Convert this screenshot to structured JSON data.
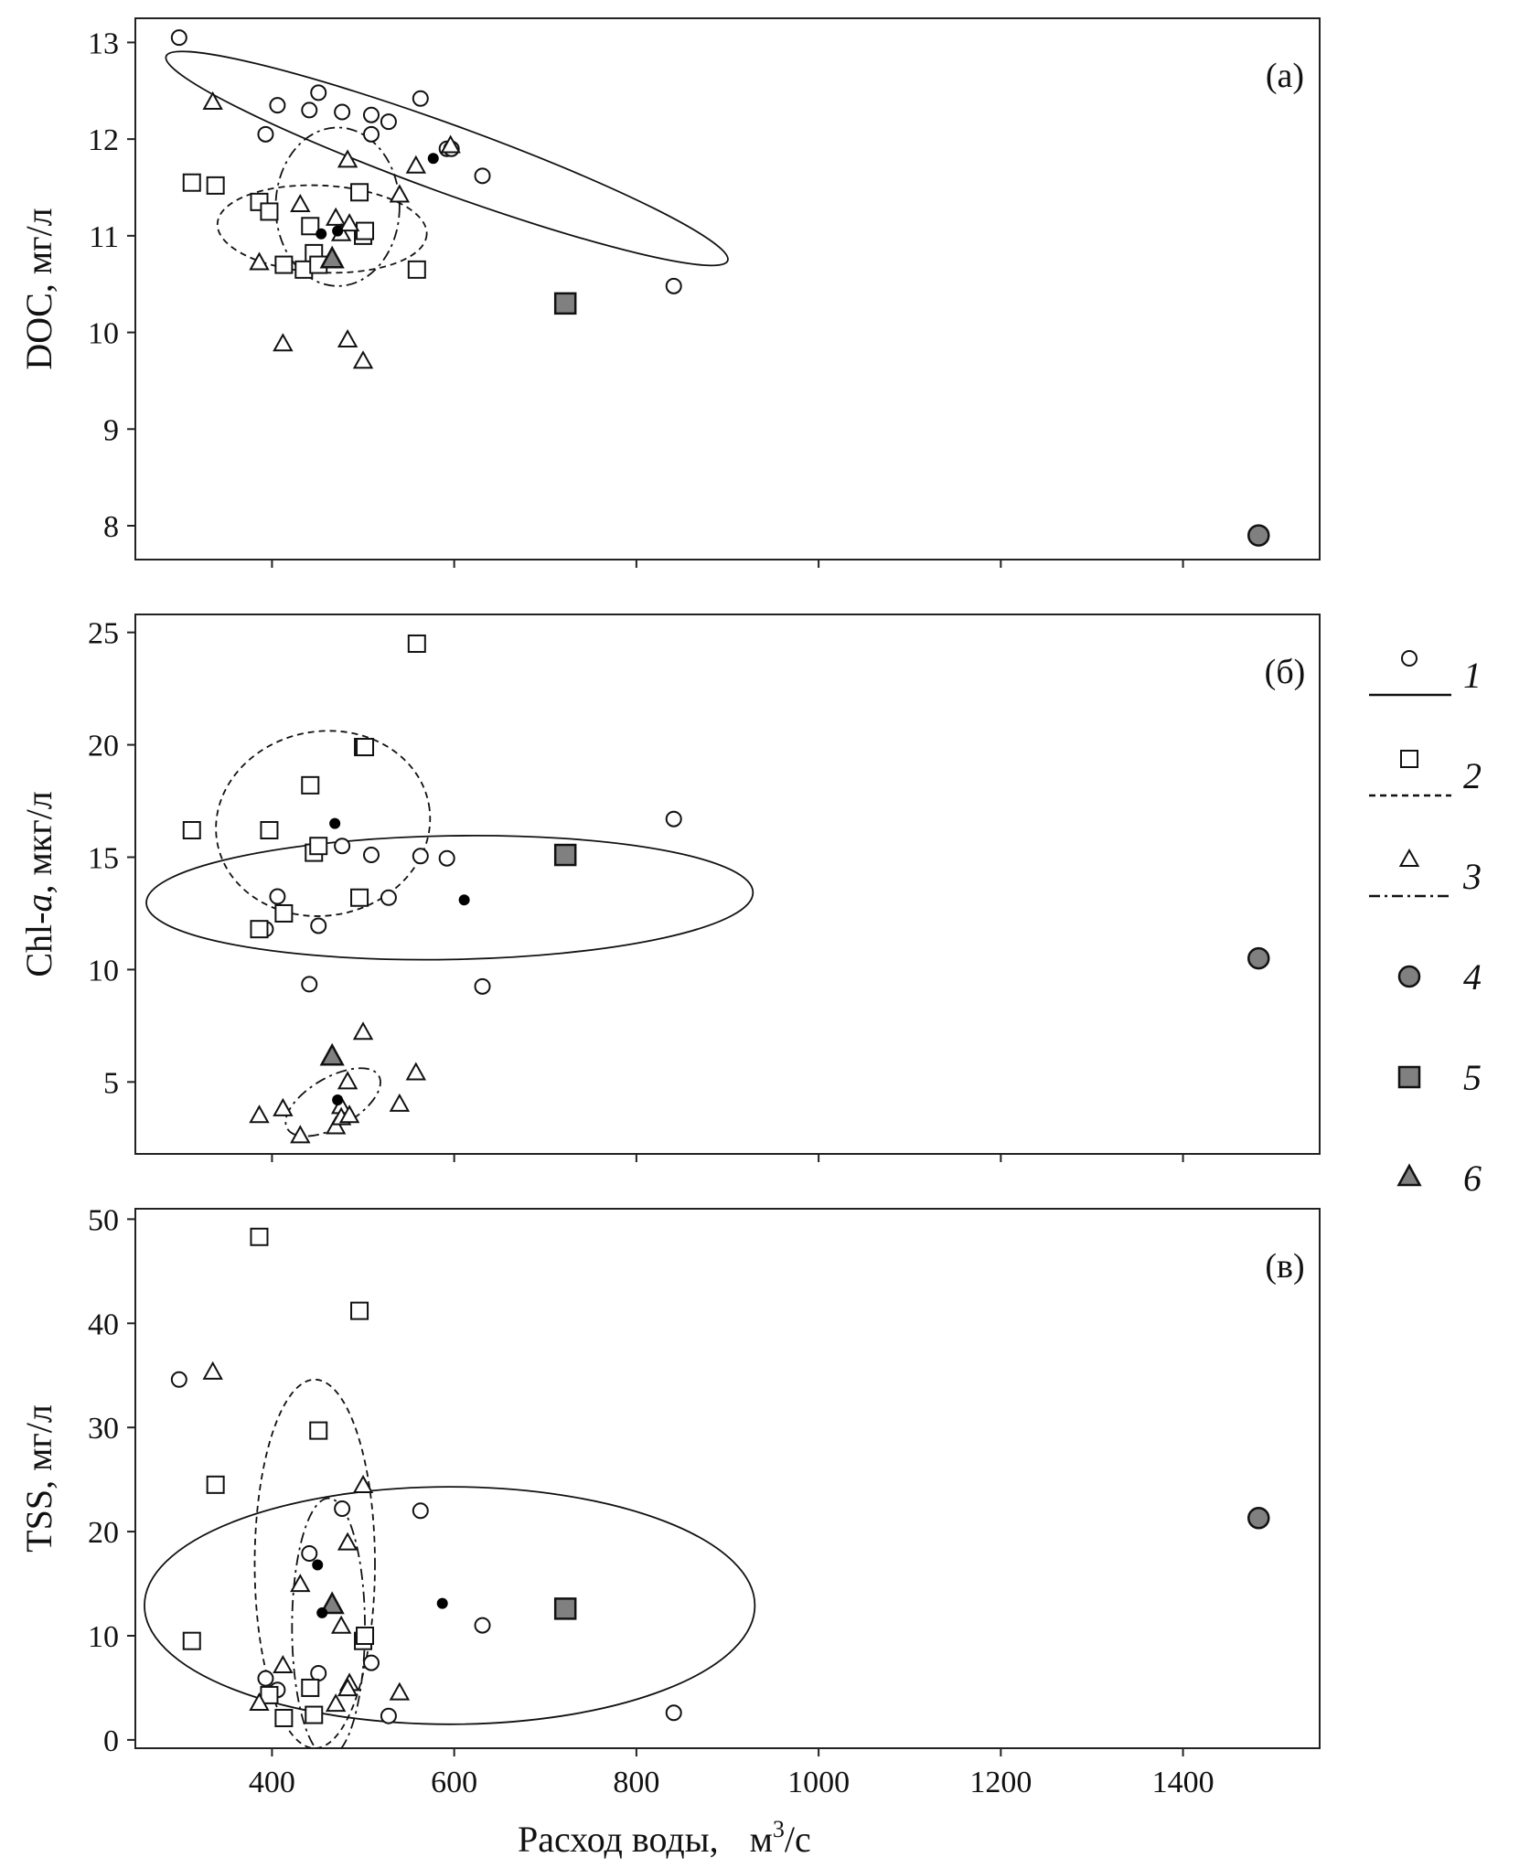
{
  "chart_data": {
    "type": "scatter",
    "xlabel": "Расход воды,",
    "xlabel_unit_prefix": "м",
    "xlabel_unit_sup": "3",
    "xlabel_unit_suffix": "/с",
    "xlim": [
      250,
      1550
    ],
    "xticks": [
      400,
      600,
      800,
      1000,
      1200,
      1400
    ],
    "grid": false,
    "legend_position": "right",
    "legend": [
      {
        "key": "1",
        "marker": "circle",
        "line": "solid"
      },
      {
        "key": "2",
        "marker": "square",
        "line": "dashed"
      },
      {
        "key": "3",
        "marker": "triangle",
        "line": "dashdot"
      },
      {
        "key": "4",
        "marker": "circle-filled"
      },
      {
        "key": "5",
        "marker": "square-filled"
      },
      {
        "key": "6",
        "marker": "triangle-filled"
      }
    ],
    "colors": {
      "filled_marker": "#808080",
      "mean_point": "#000000",
      "stroke": "#111111"
    },
    "panels": [
      {
        "label": "(а)",
        "ylabel": "DOC, мг/л",
        "ylim": [
          7.65,
          13.25
        ],
        "yticks": [
          8,
          9,
          10,
          11,
          12,
          13
        ],
        "series": [
          {
            "key": "1",
            "points": [
              [
                298,
                13.05
              ],
              [
                393,
                12.05
              ],
              [
                406,
                12.35
              ],
              [
                441,
                12.3
              ],
              [
                451,
                12.48
              ],
              [
                477,
                12.28
              ],
              [
                509,
                12.25
              ],
              [
                509,
                12.05
              ],
              [
                528,
                12.18
              ],
              [
                563,
                12.42
              ],
              [
                592,
                11.9
              ],
              [
                597,
                11.9
              ],
              [
                631,
                11.62
              ],
              [
                841,
                10.48
              ]
            ]
          },
          {
            "key": "2",
            "points": [
              [
                312,
                11.55
              ],
              [
                338,
                11.52
              ],
              [
                386,
                11.35
              ],
              [
                397,
                11.25
              ],
              [
                442,
                11.1
              ],
              [
                446,
                10.82
              ],
              [
                413,
                10.7
              ],
              [
                435,
                10.65
              ],
              [
                451,
                10.7
              ],
              [
                496,
                11.45
              ],
              [
                500,
                11.0
              ],
              [
                502,
                11.05
              ],
              [
                559,
                10.65
              ]
            ]
          },
          {
            "key": "3",
            "points": [
              [
                335,
                12.38
              ],
              [
                386,
                10.72
              ],
              [
                412,
                9.88
              ],
              [
                431,
                11.32
              ],
              [
                470,
                11.18
              ],
              [
                476,
                11.02
              ],
              [
                483,
                11.78
              ],
              [
                485,
                11.12
              ],
              [
                483,
                9.92
              ],
              [
                500,
                9.7
              ],
              [
                540,
                11.42
              ],
              [
                558,
                11.72
              ],
              [
                596,
                11.93
              ]
            ]
          },
          {
            "key": "4",
            "points": [
              [
                1483,
                7.9
              ]
            ]
          },
          {
            "key": "5",
            "points": [
              [
                722,
                10.3
              ]
            ]
          },
          {
            "key": "6",
            "points": [
              [
                466,
                10.75
              ]
            ]
          }
        ],
        "means": [
          [
            577,
            11.8
          ],
          [
            454,
            11.02
          ],
          [
            472,
            11.05
          ]
        ],
        "ellipses": [
          {
            "key": "1",
            "center": [
              592,
              11.8
            ],
            "rx": 328,
            "ry": 0.35,
            "rotation_deg": 20
          },
          {
            "key": "2",
            "center": [
              455,
              11.07
            ],
            "rx": 115,
            "ry": 0.45,
            "rotation_deg": 3
          },
          {
            "key": "3",
            "center": [
              472,
              11.3
            ],
            "rx": 68,
            "ry": 0.82,
            "rotation_deg": 0
          }
        ]
      },
      {
        "label": "(б)",
        "ylabel_prefix": "Chl-",
        "ylabel_italic": "a",
        "ylabel_suffix": ", мкг/л",
        "ylim": [
          1.8,
          25.8
        ],
        "yticks": [
          5,
          10,
          15,
          20,
          25
        ],
        "series": [
          {
            "key": "1",
            "points": [
              [
                406,
                13.25
              ],
              [
                393,
                11.8
              ],
              [
                451,
                11.95
              ],
              [
                441,
                9.35
              ],
              [
                477,
                15.5
              ],
              [
                509,
                15.1
              ],
              [
                528,
                13.2
              ],
              [
                563,
                15.05
              ],
              [
                592,
                14.95
              ],
              [
                631,
                9.25
              ],
              [
                841,
                16.7
              ]
            ]
          },
          {
            "key": "2",
            "points": [
              [
                312,
                16.2
              ],
              [
                397,
                16.2
              ],
              [
                442,
                18.2
              ],
              [
                446,
                15.2
              ],
              [
                451,
                15.5
              ],
              [
                413,
                12.5
              ],
              [
                386,
                11.8
              ],
              [
                496,
                13.2
              ],
              [
                500,
                19.9
              ],
              [
                502,
                19.9
              ],
              [
                559,
                24.5
              ]
            ]
          },
          {
            "key": "3",
            "points": [
              [
                386,
                3.5
              ],
              [
                412,
                3.8
              ],
              [
                431,
                2.6
              ],
              [
                470,
                3.0
              ],
              [
                476,
                3.9
              ],
              [
                476,
                3.4
              ],
              [
                483,
                5.0
              ],
              [
                485,
                3.5
              ],
              [
                500,
                7.2
              ],
              [
                540,
                4.0
              ],
              [
                558,
                5.4
              ]
            ]
          },
          {
            "key": "4",
            "points": [
              [
                1483,
                10.5
              ]
            ]
          },
          {
            "key": "5",
            "points": [
              [
                722,
                15.1
              ]
            ]
          },
          {
            "key": "6",
            "points": [
              [
                466,
                6.1
              ]
            ]
          }
        ],
        "means": [
          [
            469,
            16.5
          ],
          [
            611,
            13.1
          ],
          [
            472,
            4.2
          ]
        ],
        "ellipses": [
          {
            "key": "1",
            "center": [
              595,
              13.2
            ],
            "rx": 333,
            "ry": 2.75,
            "rotation_deg": -1
          },
          {
            "key": "2",
            "center": [
              456,
              16.5
            ],
            "rx": 118,
            "ry": 4.1,
            "rotation_deg": -10
          },
          {
            "key": "3",
            "center": [
              467,
              4.1
            ],
            "rx": 58,
            "ry": 1.1,
            "rotation_deg": -30
          }
        ]
      },
      {
        "label": "(в)",
        "ylabel": "TSS, мг/л",
        "ylim": [
          -0.8,
          51
        ],
        "yticks": [
          0,
          10,
          20,
          30,
          40,
          50
        ],
        "series": [
          {
            "key": "1",
            "points": [
              [
                298,
                34.6
              ],
              [
                393,
                5.9
              ],
              [
                406,
                4.8
              ],
              [
                441,
                17.9
              ],
              [
                451,
                6.4
              ],
              [
                477,
                22.2
              ],
              [
                509,
                7.4
              ],
              [
                528,
                2.3
              ],
              [
                563,
                22.0
              ],
              [
                631,
                11.0
              ],
              [
                841,
                2.6
              ]
            ]
          },
          {
            "key": "2",
            "points": [
              [
                312,
                9.5
              ],
              [
                338,
                24.5
              ],
              [
                386,
                48.3
              ],
              [
                397,
                4.3
              ],
              [
                413,
                2.1
              ],
              [
                442,
                5.0
              ],
              [
                446,
                2.4
              ],
              [
                451,
                29.7
              ],
              [
                496,
                41.2
              ],
              [
                500,
                9.5
              ],
              [
                502,
                10.0
              ]
            ]
          },
          {
            "key": "3",
            "points": [
              [
                335,
                35.3
              ],
              [
                386,
                3.5
              ],
              [
                412,
                7.1
              ],
              [
                431,
                14.9
              ],
              [
                470,
                3.4
              ],
              [
                476,
                10.9
              ],
              [
                483,
                18.9
              ],
              [
                485,
                5.4
              ],
              [
                483,
                4.9
              ],
              [
                500,
                24.4
              ],
              [
                540,
                4.5
              ]
            ]
          },
          {
            "key": "4",
            "points": [
              [
                1483,
                21.3
              ]
            ]
          },
          {
            "key": "5",
            "points": [
              [
                722,
                12.6
              ]
            ]
          },
          {
            "key": "6",
            "points": [
              [
                466,
                12.9
              ]
            ]
          }
        ],
        "means": [
          [
            450,
            16.8
          ],
          [
            455,
            12.2
          ],
          [
            587,
            13.1
          ]
        ],
        "ellipses": [
          {
            "key": "1",
            "center": [
              595,
              12.9
            ],
            "rx": 335,
            "ry": 11.4,
            "rotation_deg": 0
          },
          {
            "key": "2",
            "center": [
              447,
              16.9
            ],
            "rx": 66,
            "ry": 17.7,
            "rotation_deg": 0
          },
          {
            "key": "3",
            "center": [
              462,
              10.8
            ],
            "rx": 40,
            "ry": 12.4,
            "rotation_deg": 0
          }
        ]
      }
    ]
  }
}
